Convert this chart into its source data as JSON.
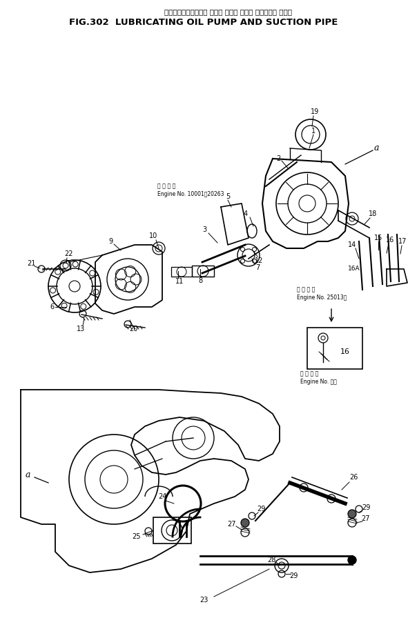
{
  "title_japanese": "ルーブリケーティング オイル ポンプ および サクション パイプ",
  "title_english": "FIG.302  LUBRICATING OIL PUMP AND SUCTION PIPE",
  "bg_color": "#ffffff",
  "line_color": "#000000",
  "text_color": "#000000",
  "fig_width": 5.91,
  "fig_height": 8.96,
  "dpi": 100,
  "engine_note1_jp": "適 用 号 機",
  "engine_note1_en": "Engine No. 10001～20263",
  "engine_note2_jp": "適 用 号 機",
  "engine_note2_en": "Engine No. 25013～",
  "engine_note3_jp": "適 用 号 機",
  "engine_note3_en": "Engine No. ：～"
}
